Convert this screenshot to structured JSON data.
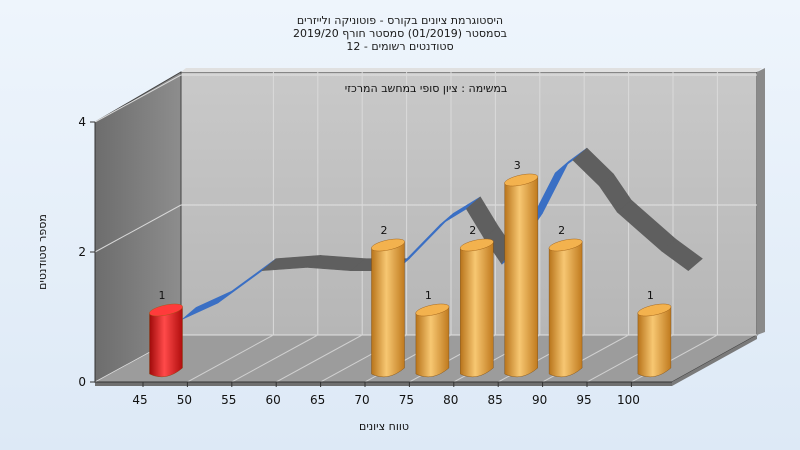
{
  "chart_data": {
    "type": "bar",
    "title_lines": [
      "היסטוגרמת ציונים בקורס - פוטוניקה ולייזרים",
      "בסמסטר  (01/2019)  סמסטר חורף 2019/20",
      "12 - סטודנטים רשומים"
    ],
    "subtitle": "במשימה : ציון סופי במחשב המרכזי",
    "xlabel": "טווח ציונים",
    "ylabel": "מספר סטודנטים",
    "x_ticks": [
      "45",
      "50",
      "55",
      "60",
      "65",
      "70",
      "75",
      "80",
      "85",
      "90",
      "95",
      "100"
    ],
    "y_ticks": [
      "0",
      "2",
      "4"
    ],
    "ylim": [
      0,
      4
    ],
    "bars": [
      {
        "x": "45",
        "value": 1,
        "label": "1",
        "color": "#e01515"
      },
      {
        "x": "70",
        "value": 2,
        "label": "2",
        "color": "#e8a33d"
      },
      {
        "x": "75",
        "value": 1,
        "label": "1",
        "color": "#e8a33d"
      },
      {
        "x": "80",
        "value": 2,
        "label": "2",
        "color": "#e8a33d"
      },
      {
        "x": "85",
        "value": 3,
        "label": "3",
        "color": "#e8a33d"
      },
      {
        "x": "90",
        "value": 2,
        "label": "2",
        "color": "#e8a33d"
      },
      {
        "x": "100",
        "value": 1,
        "label": "1",
        "color": "#e8a33d"
      }
    ],
    "distribution_curve": {
      "x": [
        46,
        50,
        55,
        60,
        65,
        70,
        75,
        78,
        80,
        82,
        85,
        88,
        90,
        93,
        95,
        100,
        103
      ],
      "y": [
        0.75,
        1.0,
        1.5,
        1.55,
        1.5,
        1.5,
        2.2,
        2.45,
        2.0,
        1.6,
        2.2,
        3.0,
        3.2,
        2.8,
        2.4,
        1.8,
        1.5
      ],
      "highlight_color": "#3a6fc4",
      "base_color": "#5f5f5f"
    },
    "grid": true
  }
}
